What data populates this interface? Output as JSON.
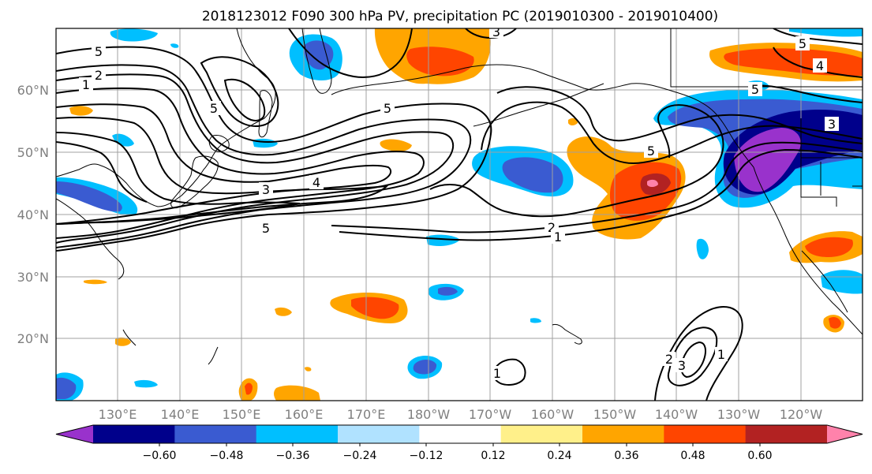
{
  "title": "2018123012 F090 300 hPa PV, precipitation PC (2019010300 - 2019010400)",
  "map": {
    "lat_ticks": [
      "60°N",
      "50°N",
      "40°N",
      "30°N",
      "20°N"
    ],
    "lon_ticks": [
      "130°E",
      "140°E",
      "150°E",
      "160°E",
      "170°E",
      "180°W",
      "170°W",
      "160°W",
      "150°W",
      "140°W",
      "130°W",
      "120°W"
    ],
    "contour_labels": [
      "5",
      "2",
      "1",
      "5",
      "5",
      "3",
      "4",
      "5",
      "5",
      "3",
      "5",
      "2",
      "1",
      "5",
      "4",
      "3",
      "2",
      "3",
      "1",
      "1"
    ]
  },
  "colorbar": {
    "colors": [
      "#9932cc",
      "#00008b",
      "#3a5bd1",
      "#00bfff",
      "#b0e2ff",
      "#ffffff",
      "#fff08a",
      "#ffa500",
      "#ff4500",
      "#b22222",
      "#ff82ab"
    ],
    "tick_labels": [
      "−0.60",
      "−0.48",
      "−0.36",
      "−0.24",
      "−0.12",
      "0.12",
      "0.24",
      "0.36",
      "0.48",
      "0.60"
    ]
  }
}
